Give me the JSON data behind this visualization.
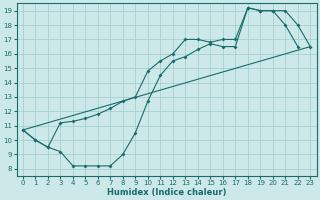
{
  "xlabel": "Humidex (Indice chaleur)",
  "xlim": [
    -0.5,
    23.5
  ],
  "ylim": [
    7.5,
    19.5
  ],
  "xticks": [
    0,
    1,
    2,
    3,
    4,
    5,
    6,
    7,
    8,
    9,
    10,
    11,
    12,
    13,
    14,
    15,
    16,
    17,
    18,
    19,
    20,
    21,
    22,
    23
  ],
  "yticks": [
    8,
    9,
    10,
    11,
    12,
    13,
    14,
    15,
    16,
    17,
    18,
    19
  ],
  "bg_color": "#cce8e8",
  "grid_color": "#a0cccc",
  "line_color": "#1a6b6b",
  "line1_x": [
    0,
    1,
    2,
    3,
    4,
    5,
    6,
    7,
    8,
    9,
    10,
    11,
    12,
    13,
    14,
    15,
    16,
    17,
    18,
    19,
    20,
    21,
    22
  ],
  "line1_y": [
    10.7,
    10.0,
    9.5,
    9.2,
    8.2,
    8.2,
    8.2,
    8.2,
    9.0,
    10.5,
    12.7,
    14.5,
    15.5,
    15.8,
    16.3,
    16.7,
    16.5,
    16.5,
    19.2,
    19.0,
    19.0,
    18.0,
    16.5
  ],
  "line2_x": [
    0,
    1,
    2,
    3,
    4,
    5,
    6,
    7,
    8,
    9,
    10,
    11,
    12,
    13,
    14,
    15,
    16,
    17,
    18,
    19,
    20,
    21,
    22,
    23
  ],
  "line2_y": [
    10.7,
    10.0,
    9.5,
    11.2,
    11.3,
    11.5,
    11.8,
    12.2,
    12.7,
    13.0,
    14.8,
    15.5,
    16.0,
    17.0,
    17.0,
    16.8,
    17.0,
    17.0,
    19.2,
    19.0,
    19.0,
    19.0,
    18.0,
    16.5
  ],
  "line3_x": [
    0,
    23
  ],
  "line3_y": [
    10.7,
    16.5
  ],
  "tick_fontsize": 5,
  "xlabel_fontsize": 6
}
